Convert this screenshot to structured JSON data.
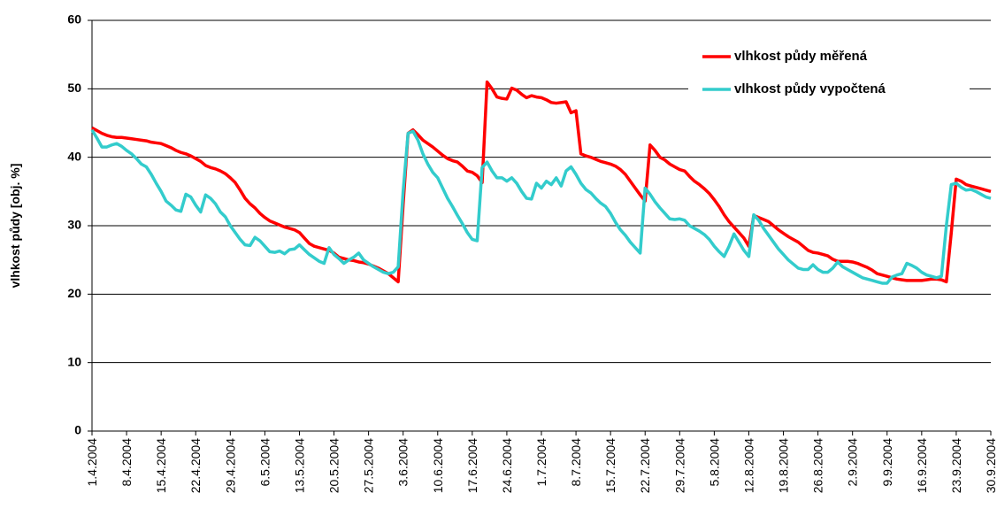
{
  "chart_data": {
    "type": "line",
    "y_label": "vlhkost půdy [obj. %]",
    "ylim": [
      0,
      60
    ],
    "yticks": [
      0,
      10,
      20,
      30,
      40,
      50,
      60
    ],
    "grid": true,
    "legend": "top-right",
    "x": [
      "1.4.2004",
      "2.4.2004",
      "3.4.2004",
      "4.4.2004",
      "5.4.2004",
      "6.4.2004",
      "7.4.2004",
      "8.4.2004",
      "9.4.2004",
      "10.4.2004",
      "11.4.2004",
      "12.4.2004",
      "13.4.2004",
      "14.4.2004",
      "15.4.2004",
      "16.4.2004",
      "17.4.2004",
      "18.4.2004",
      "19.4.2004",
      "20.4.2004",
      "21.4.2004",
      "22.4.2004",
      "23.4.2004",
      "24.4.2004",
      "25.4.2004",
      "26.4.2004",
      "27.4.2004",
      "28.4.2004",
      "29.4.2004",
      "30.4.2004",
      "1.5.2004",
      "2.5.2004",
      "3.5.2004",
      "4.5.2004",
      "5.5.2004",
      "6.5.2004",
      "7.5.2004",
      "8.5.2004",
      "9.5.2004",
      "10.5.2004",
      "11.5.2004",
      "12.5.2004",
      "13.5.2004",
      "14.5.2004",
      "15.5.2004",
      "16.5.2004",
      "17.5.2004",
      "18.5.2004",
      "19.5.2004",
      "20.5.2004",
      "21.5.2004",
      "22.5.2004",
      "23.5.2004",
      "24.5.2004",
      "25.5.2004",
      "26.5.2004",
      "27.5.2004",
      "28.5.2004",
      "29.5.2004",
      "30.5.2004",
      "31.5.2004",
      "1.6.2004",
      "2.6.2004",
      "3.6.2004",
      "4.6.2004",
      "5.6.2004",
      "6.6.2004",
      "7.6.2004",
      "8.6.2004",
      "9.6.2004",
      "10.6.2004",
      "11.6.2004",
      "12.6.2004",
      "13.6.2004",
      "14.6.2004",
      "15.6.2004",
      "16.6.2004",
      "17.6.2004",
      "18.6.2004",
      "19.6.2004",
      "20.6.2004",
      "21.6.2004",
      "22.6.2004",
      "23.6.2004",
      "24.6.2004",
      "25.6.2004",
      "26.6.2004",
      "27.6.2004",
      "28.6.2004",
      "29.6.2004",
      "30.6.2004",
      "1.7.2004",
      "2.7.2004",
      "3.7.2004",
      "4.7.2004",
      "5.7.2004",
      "6.7.2004",
      "7.7.2004",
      "8.7.2004",
      "9.7.2004",
      "10.7.2004",
      "11.7.2004",
      "12.7.2004",
      "13.7.2004",
      "14.7.2004",
      "15.7.2004",
      "16.7.2004",
      "17.7.2004",
      "18.7.2004",
      "19.7.2004",
      "20.7.2004",
      "21.7.2004",
      "22.7.2004",
      "23.7.2004",
      "24.7.2004",
      "25.7.2004",
      "26.7.2004",
      "27.7.2004",
      "28.7.2004",
      "29.7.2004",
      "30.7.2004",
      "31.7.2004",
      "1.8.2004",
      "2.8.2004",
      "3.8.2004",
      "4.8.2004",
      "5.8.2004",
      "6.8.2004",
      "7.8.2004",
      "8.8.2004",
      "9.8.2004",
      "10.8.2004",
      "11.8.2004",
      "12.8.2004",
      "13.8.2004",
      "14.8.2004",
      "15.8.2004",
      "16.8.2004",
      "17.8.2004",
      "18.8.2004",
      "19.8.2004",
      "20.8.2004",
      "21.8.2004",
      "22.8.2004",
      "23.8.2004",
      "24.8.2004",
      "25.8.2004",
      "26.8.2004",
      "27.8.2004",
      "28.8.2004",
      "29.8.2004",
      "30.8.2004",
      "31.8.2004",
      "1.9.2004",
      "2.9.2004",
      "3.9.2004",
      "4.9.2004",
      "5.9.2004",
      "6.9.2004",
      "7.9.2004",
      "8.9.2004",
      "9.9.2004",
      "10.9.2004",
      "11.9.2004",
      "12.9.2004",
      "13.9.2004",
      "14.9.2004",
      "15.9.2004",
      "16.9.2004",
      "17.9.2004",
      "18.9.2004",
      "19.9.2004",
      "20.9.2004",
      "21.9.2004",
      "22.9.2004",
      "23.9.2004",
      "24.9.2004",
      "25.9.2004",
      "26.9.2004",
      "27.9.2004",
      "28.9.2004",
      "29.9.2004",
      "30.9.2004"
    ],
    "xticks": [
      "1.4.2004",
      "8.4.2004",
      "15.4.2004",
      "22.4.2004",
      "29.4.2004",
      "6.5.2004",
      "13.5.2004",
      "20.5.2004",
      "27.5.2004",
      "3.6.2004",
      "10.6.2004",
      "17.6.2004",
      "24.6.2004",
      "1.7.2004",
      "8.7.2004",
      "15.7.2004",
      "22.7.2004",
      "29.7.2004",
      "5.8.2004",
      "12.8.2004",
      "19.8.2004",
      "26.8.2004",
      "2.9.2004",
      "9.9.2004",
      "16.9.2004",
      "23.9.2004",
      "30.9.2004"
    ],
    "series": [
      {
        "name": "vlhkost půdy měřená",
        "color": "#ff0000",
        "values": [
          44.3,
          43.9,
          43.5,
          43.2,
          43.0,
          42.9,
          42.9,
          42.8,
          42.7,
          42.6,
          42.5,
          42.4,
          42.2,
          42.1,
          42.0,
          41.7,
          41.4,
          41.0,
          40.7,
          40.5,
          40.2,
          39.8,
          39.4,
          38.8,
          38.5,
          38.3,
          38.0,
          37.6,
          37.0,
          36.3,
          35.2,
          34.0,
          33.2,
          32.6,
          31.8,
          31.2,
          30.7,
          30.4,
          30.1,
          29.8,
          29.6,
          29.4,
          29.0,
          28.2,
          27.4,
          27.0,
          26.8,
          26.6,
          26.4,
          26.0,
          25.4,
          25.2,
          25.0,
          24.9,
          24.7,
          24.6,
          24.4,
          24.1,
          23.8,
          23.4,
          23.0,
          22.4,
          21.8,
          33.0,
          43.5,
          44.0,
          43.3,
          42.5,
          42.0,
          41.5,
          40.9,
          40.3,
          39.8,
          39.5,
          39.3,
          38.7,
          38.0,
          37.8,
          37.3,
          36.3,
          51.0,
          50.0,
          48.8,
          48.6,
          48.5,
          50.1,
          49.8,
          49.2,
          48.7,
          49.0,
          48.8,
          48.7,
          48.4,
          48.0,
          47.9,
          48.0,
          48.1,
          46.5,
          46.8,
          40.5,
          40.2,
          40.0,
          39.7,
          39.4,
          39.2,
          39.0,
          38.7,
          38.2,
          37.5,
          36.5,
          35.5,
          34.5,
          33.6,
          41.8,
          41.0,
          40.0,
          39.6,
          39.0,
          38.6,
          38.2,
          38.0,
          37.2,
          36.5,
          36.0,
          35.4,
          34.7,
          33.8,
          32.8,
          31.6,
          30.6,
          29.8,
          29.0,
          28.2,
          27.0,
          31.5,
          31.2,
          30.9,
          30.6,
          30.0,
          29.4,
          28.9,
          28.4,
          28.0,
          27.6,
          27.0,
          26.4,
          26.1,
          26.0,
          25.8,
          25.6,
          25.1,
          24.8,
          24.8,
          24.8,
          24.7,
          24.5,
          24.2,
          23.9,
          23.5,
          23.0,
          22.8,
          22.6,
          22.4,
          22.2,
          22.1,
          22.0,
          22.0,
          22.0,
          22.0,
          22.1,
          22.2,
          22.2,
          22.1,
          21.8,
          29.0,
          36.8,
          36.5,
          36.0,
          35.8,
          35.6,
          35.4,
          35.2,
          35.0
        ]
      },
      {
        "name": "vlhkost půdy vypočtená",
        "color": "#33cccc",
        "values": [
          44.0,
          42.8,
          41.5,
          41.5,
          41.8,
          42.0,
          41.6,
          41.0,
          40.5,
          39.8,
          39.0,
          38.6,
          37.5,
          36.2,
          35.0,
          33.6,
          33.0,
          32.3,
          32.1,
          34.6,
          34.2,
          33.0,
          32.0,
          34.5,
          34.0,
          33.2,
          32.0,
          31.3,
          30.0,
          29.0,
          28.0,
          27.2,
          27.1,
          28.3,
          27.8,
          27.0,
          26.2,
          26.1,
          26.3,
          25.9,
          26.5,
          26.6,
          27.2,
          26.5,
          25.8,
          25.3,
          24.8,
          24.5,
          26.8,
          25.8,
          25.2,
          24.5,
          25.0,
          25.4,
          26.0,
          25.0,
          24.5,
          24.0,
          23.6,
          23.2,
          23.0,
          23.2,
          24.0,
          35.0,
          43.5,
          43.8,
          42.5,
          40.5,
          39.0,
          37.8,
          37.0,
          35.5,
          34.0,
          32.8,
          31.5,
          30.3,
          29.0,
          28.0,
          27.8,
          38.5,
          39.3,
          38.0,
          37.0,
          37.0,
          36.5,
          37.0,
          36.2,
          35.0,
          34.0,
          33.9,
          36.2,
          35.5,
          36.5,
          36.0,
          37.0,
          35.8,
          38.0,
          38.6,
          37.5,
          36.2,
          35.3,
          34.8,
          34.0,
          33.3,
          32.8,
          31.8,
          30.5,
          29.4,
          28.6,
          27.6,
          26.8,
          26.0,
          35.5,
          34.6,
          33.5,
          32.6,
          31.8,
          31.0,
          30.9,
          31.0,
          30.8,
          30.0,
          29.6,
          29.2,
          28.7,
          28.0,
          27.0,
          26.2,
          25.5,
          27.0,
          28.8,
          27.6,
          26.4,
          25.5,
          31.6,
          30.8,
          29.6,
          28.6,
          27.6,
          26.6,
          25.8,
          25.0,
          24.4,
          23.8,
          23.6,
          23.6,
          24.3,
          23.6,
          23.2,
          23.2,
          23.8,
          24.7,
          24.0,
          23.6,
          23.2,
          22.8,
          22.4,
          22.2,
          22.0,
          21.8,
          21.6,
          21.6,
          22.5,
          22.8,
          23.0,
          24.5,
          24.2,
          23.8,
          23.2,
          22.8,
          22.6,
          22.4,
          22.6,
          30.0,
          36.0,
          36.2,
          35.6,
          35.2,
          35.3,
          35.0,
          34.6,
          34.2,
          34.0
        ]
      }
    ]
  }
}
